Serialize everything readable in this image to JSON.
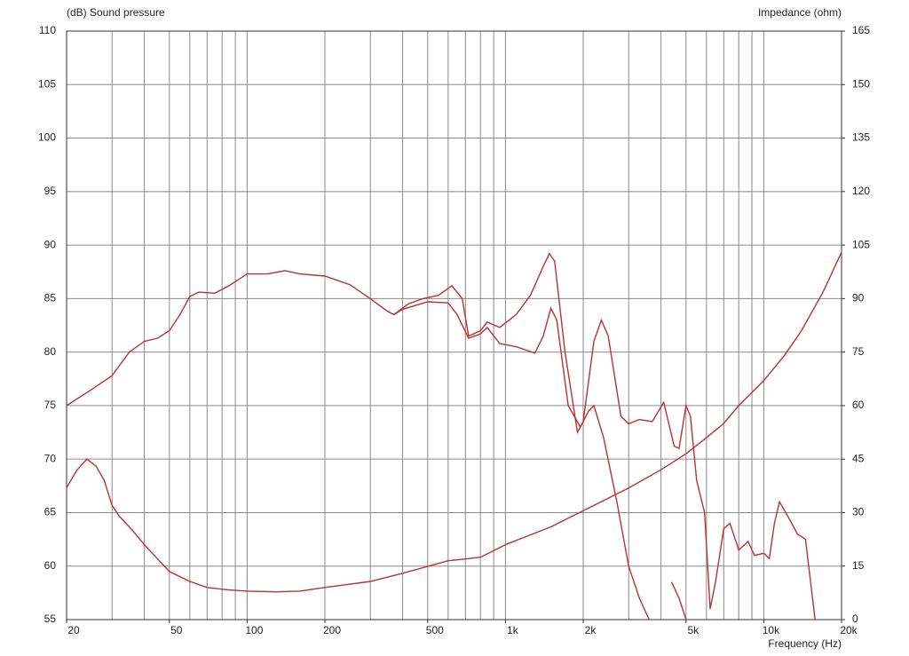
{
  "chart_data": {
    "type": "line",
    "title_left": "(dB)  Sound pressure",
    "title_right": "Impedance  (ohm)",
    "x_label": "Frequency  (Hz)",
    "x_scale": "log",
    "grid": true,
    "xlim": [
      20,
      20000
    ],
    "xticks": [
      20,
      50,
      100,
      200,
      500,
      {
        "value": 1000,
        "label": "1k"
      },
      {
        "value": 2000,
        "label": "2k"
      },
      {
        "value": 5000,
        "label": "5k"
      },
      {
        "value": 10000,
        "label": "10k"
      },
      {
        "value": 20000,
        "label": "20k"
      }
    ],
    "xgrid": [
      20,
      30,
      40,
      50,
      60,
      70,
      80,
      90,
      100,
      200,
      300,
      400,
      500,
      600,
      700,
      800,
      900,
      1000,
      2000,
      3000,
      4000,
      5000,
      6000,
      7000,
      8000,
      9000,
      10000,
      20000
    ],
    "ylim": [
      55,
      110
    ],
    "yticks": [
      55,
      60,
      65,
      70,
      75,
      80,
      85,
      90,
      95,
      100,
      105,
      110
    ],
    "y2lim": [
      0,
      165
    ],
    "y2ticks": [
      0,
      15,
      30,
      45,
      60,
      75,
      90,
      105,
      120,
      135,
      150,
      165
    ],
    "series": [
      {
        "color": "#b83232",
        "axis": "y",
        "x": [
          20,
          25,
          30,
          35,
          40,
          45,
          50,
          55,
          60,
          65,
          75,
          85,
          100,
          120,
          140,
          160,
          200,
          250,
          300,
          350,
          370,
          420,
          480,
          550,
          620,
          680,
          720,
          800,
          850,
          950,
          1100,
          1250,
          1400,
          1480,
          1550,
          1700,
          1900,
          2000,
          2200,
          2350,
          2500,
          2800,
          3000,
          3300,
          3700,
          4100,
          4500,
          4700,
          5000,
          5200,
          5500,
          5900,
          6200,
          6500,
          7000,
          7400,
          8000,
          8700,
          9200,
          10000,
          10500,
          11000,
          11500,
          12500,
          13500,
          14500,
          15800
        ],
        "values": [
          75,
          76.5,
          77.8,
          80,
          81,
          81.3,
          82,
          83.5,
          85.2,
          85.6,
          85.5,
          86.2,
          87.3,
          87.3,
          87.6,
          87.3,
          87.1,
          86.3,
          85,
          83.8,
          83.5,
          84.5,
          85,
          85.3,
          86.2,
          85,
          81.5,
          82,
          82.8,
          82.3,
          83.5,
          85.3,
          88,
          89.2,
          88.5,
          80,
          72.5,
          73.5,
          81,
          83,
          81.5,
          74,
          73.3,
          73.7,
          73.5,
          75.3,
          71.2,
          71,
          75,
          74,
          68,
          65,
          56,
          58.5,
          63.5,
          64,
          61.5,
          62.3,
          61,
          61.2,
          60.7,
          64,
          66,
          64.5,
          63,
          62.5,
          55
        ]
      },
      {
        "color": "#b83232",
        "axis": "y",
        "x": [
          370,
          400,
          500,
          600,
          650,
          720,
          800,
          850,
          950,
          1100,
          1300,
          1400,
          1500,
          1580,
          1750,
          1950,
          2100,
          2200,
          2400,
          2700,
          3000,
          3300,
          3600,
          4200,
          4400,
          4700,
          5000
        ],
        "values": [
          83.5,
          84,
          84.7,
          84.6,
          83.5,
          81.3,
          81.7,
          82.3,
          80.8,
          80.5,
          79.9,
          81.5,
          84.1,
          83,
          75,
          73,
          74.5,
          75,
          72,
          66,
          60,
          57,
          55,
          null,
          58.5,
          57,
          55
        ]
      },
      {
        "color": "#b83232",
        "axis": "y2",
        "x": [
          20,
          22,
          24,
          26,
          28,
          30,
          32,
          36,
          40,
          45,
          50,
          60,
          70,
          85,
          100,
          130,
          160,
          200,
          300,
          400,
          600,
          700,
          800,
          1000,
          1500,
          2000,
          3000,
          4000,
          5000,
          6000,
          7000,
          8000,
          10000,
          12000,
          14000,
          17000,
          20000
        ],
        "values": [
          37,
          42,
          45,
          43,
          39,
          32,
          29,
          25,
          21,
          17,
          13.5,
          10.7,
          9,
          8.3,
          8,
          7.8,
          8,
          9,
          10.7,
          13,
          16.5,
          17,
          17.5,
          21,
          26,
          30.5,
          36.9,
          42,
          46.5,
          51,
          55,
          60,
          67,
          74,
          81,
          92,
          103
        ]
      }
    ]
  }
}
